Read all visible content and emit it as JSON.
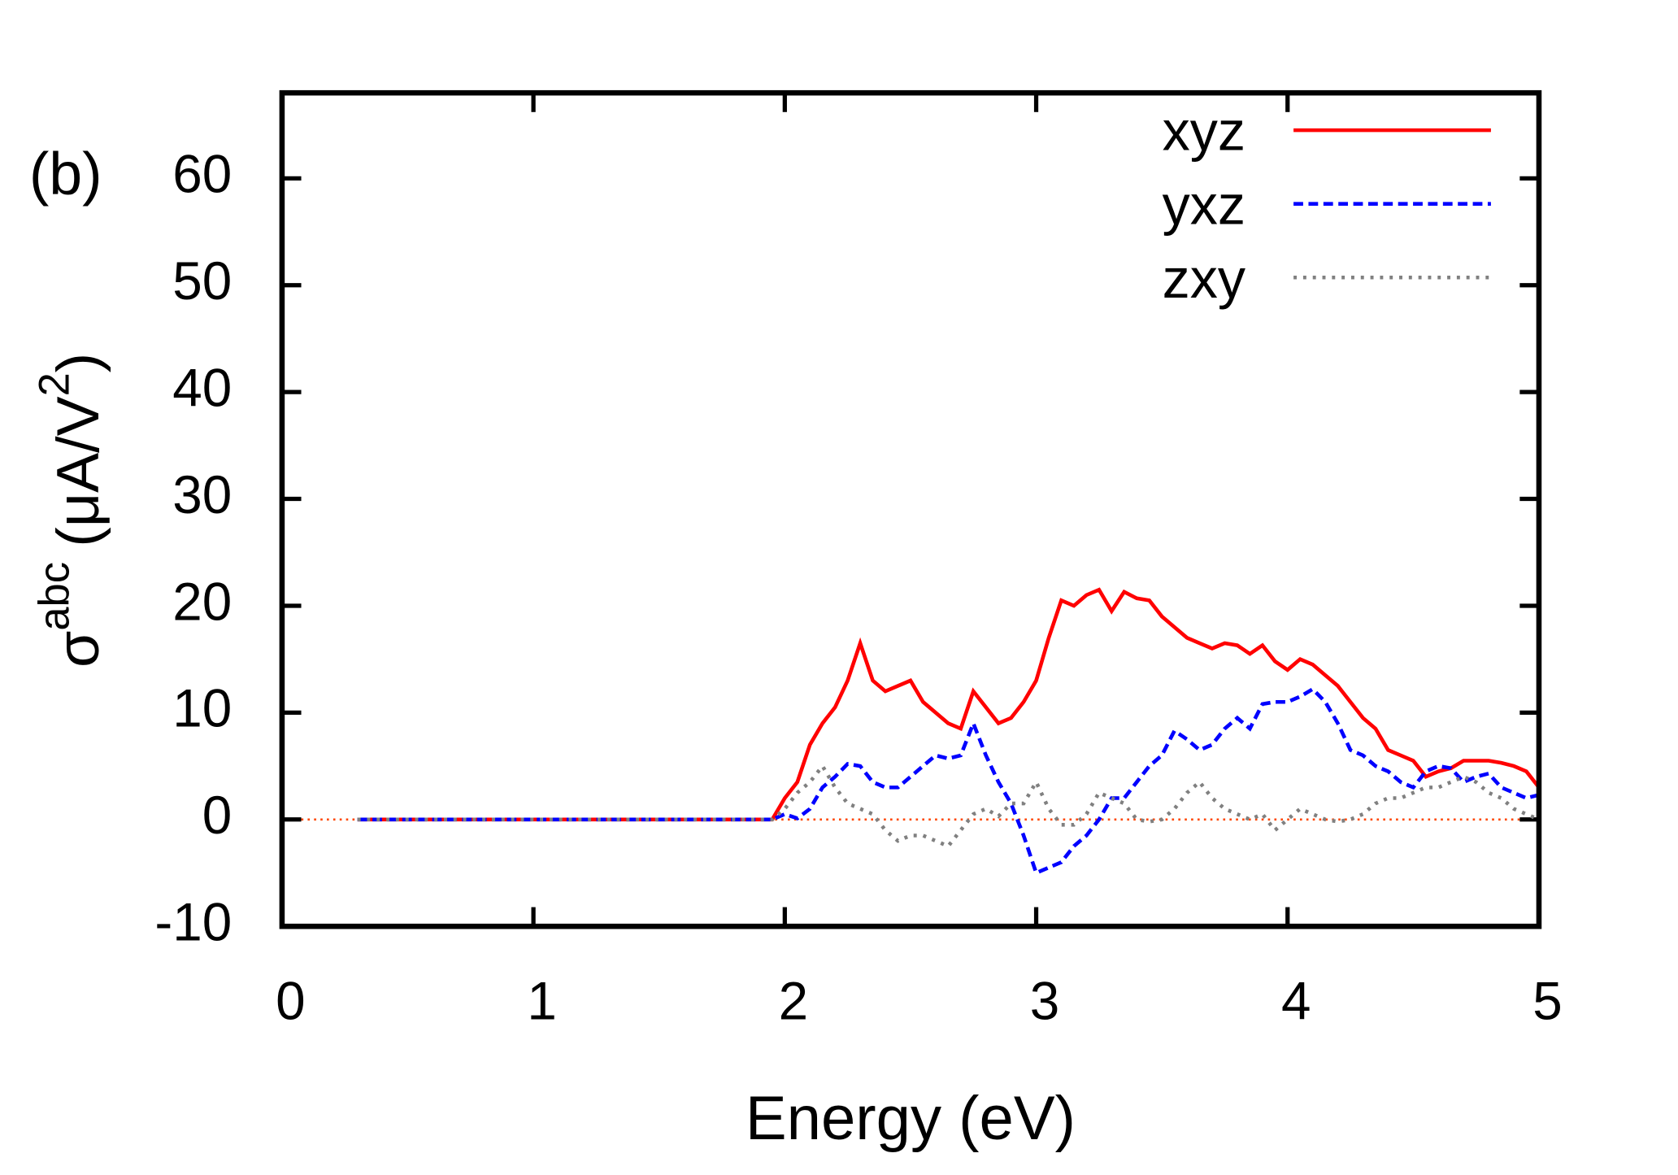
{
  "chart_data": {
    "type": "line",
    "annotation": "(b)",
    "x_label": "Energy (eV)",
    "y_label": {
      "symbol": "σ",
      "superscript": "abc",
      "unit": "(μA/V",
      "unit_superscript": "2",
      "close": ")"
    },
    "xlim": [
      0,
      5
    ],
    "xticks": [
      0,
      1,
      2,
      3,
      4,
      5
    ],
    "ylim": [
      -10,
      68
    ],
    "yticks": [
      -10,
      0,
      10,
      20,
      30,
      40,
      50,
      60
    ],
    "legend": "top-right",
    "reference_line": {
      "y": 0,
      "color": "#ff4500"
    },
    "x": [
      0.3,
      1.95,
      2.0,
      2.05,
      2.1,
      2.15,
      2.2,
      2.25,
      2.3,
      2.35,
      2.4,
      2.45,
      2.5,
      2.55,
      2.6,
      2.65,
      2.7,
      2.75,
      2.8,
      2.85,
      2.9,
      2.95,
      3.0,
      3.05,
      3.1,
      3.15,
      3.2,
      3.25,
      3.3,
      3.35,
      3.4,
      3.45,
      3.5,
      3.55,
      3.6,
      3.65,
      3.7,
      3.75,
      3.8,
      3.85,
      3.9,
      3.95,
      4.0,
      4.05,
      4.1,
      4.15,
      4.2,
      4.25,
      4.3,
      4.35,
      4.4,
      4.45,
      4.5,
      4.55,
      4.6,
      4.65,
      4.7,
      4.75,
      4.8,
      4.85,
      4.9,
      4.95,
      5.0
    ],
    "series": [
      {
        "name": "xyz",
        "color": "#ff0000",
        "dash": "solid",
        "values": [
          0,
          0,
          2,
          3.5,
          7,
          9,
          10.5,
          13,
          16.5,
          13,
          12,
          12.5,
          13,
          11,
          10,
          9,
          8.5,
          12,
          10.5,
          9,
          9.5,
          11,
          13,
          17,
          20.5,
          20,
          21,
          21.5,
          19.5,
          21.3,
          20.7,
          20.5,
          19,
          18,
          17,
          16.5,
          16,
          16.5,
          16.3,
          15.5,
          16.3,
          14.8,
          14,
          15,
          14.5,
          13.5,
          12.5,
          11,
          9.5,
          8.5,
          6.5,
          6,
          5.5,
          4,
          4.5,
          4.8,
          5.5,
          5.5,
          5.5,
          5.3,
          5,
          4.5,
          3
        ]
      },
      {
        "name": "yxz",
        "color": "#0000ff",
        "dash": "dashed",
        "values": [
          0,
          0,
          0.5,
          0.1,
          1,
          3,
          4,
          5.2,
          5,
          3.5,
          3,
          3,
          4,
          5,
          6,
          5.7,
          6,
          9,
          6,
          3.5,
          1.5,
          -1.5,
          -5,
          -4.5,
          -4,
          -2.5,
          -1.5,
          0,
          2,
          2,
          3.5,
          5,
          6,
          8.3,
          7.5,
          6.5,
          7,
          8.5,
          9.5,
          8.5,
          10.8,
          11,
          11,
          11.5,
          12.2,
          11,
          9,
          6.5,
          6,
          5,
          4.5,
          3.5,
          3,
          4.5,
          5,
          4.8,
          3.5,
          4,
          4.3,
          3,
          2.5,
          2,
          2.3
        ]
      },
      {
        "name": "zxy",
        "color": "#808080",
        "dash": "dotted",
        "values": [
          0,
          0,
          1,
          2.5,
          3.5,
          5,
          3,
          1.5,
          1,
          0.5,
          -1,
          -2,
          -1.5,
          -1.5,
          -2,
          -2.5,
          -1,
          0.5,
          1,
          0.3,
          1.5,
          1.5,
          3.5,
          1,
          -0.5,
          -0.5,
          0.5,
          2.5,
          2,
          1.5,
          0,
          -0.2,
          0,
          1,
          2.5,
          3.5,
          2,
          1,
          0.5,
          0,
          0.5,
          -1,
          0,
          1,
          0.5,
          0,
          -0.2,
          0,
          0.5,
          1.5,
          2,
          2,
          2.5,
          3,
          3,
          3.5,
          4,
          3.5,
          2.5,
          2,
          1,
          0.5,
          0
        ]
      }
    ]
  }
}
